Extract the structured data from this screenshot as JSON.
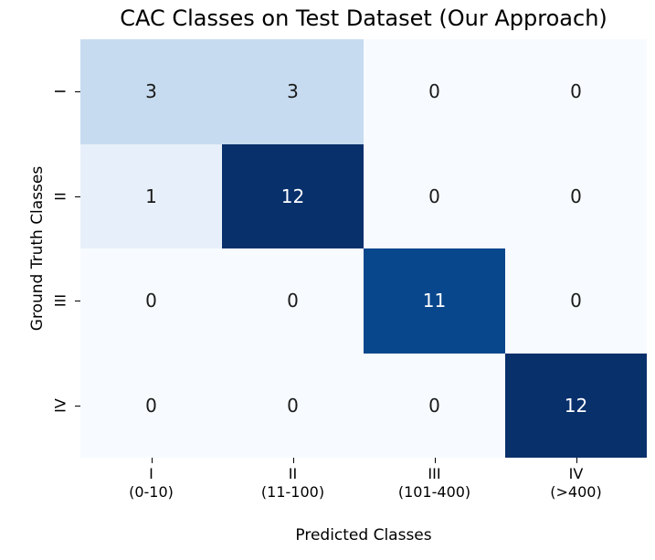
{
  "chart_data": {
    "type": "heatmap",
    "title": "CAC Classes on Test Dataset (Our Approach)",
    "xlabel": "Predicted Classes",
    "ylabel": "Ground Truth Classes",
    "x_ticklabels": [
      {
        "numeral": "I",
        "range": "(0-10)"
      },
      {
        "numeral": "II",
        "range": "(11-100)"
      },
      {
        "numeral": "III",
        "range": "(101-400)"
      },
      {
        "numeral": "IV",
        "range": "(>400)"
      }
    ],
    "y_ticklabels": [
      "I",
      "II",
      "III",
      "IV"
    ],
    "matrix": [
      [
        3,
        3,
        0,
        0
      ],
      [
        1,
        12,
        0,
        0
      ],
      [
        0,
        0,
        11,
        0
      ],
      [
        0,
        0,
        0,
        12
      ]
    ],
    "colormap": "Blues",
    "vmin": 0,
    "vmax": 12,
    "value_colors": {
      "0": "#f7fbff",
      "1": "#e7f0fa",
      "3": "#c6dbef",
      "11": "#09478d",
      "12": "#08306b"
    },
    "annotation_color_dark": "#1a1a1a",
    "annotation_color_light": "#ffffff",
    "legend": "none",
    "grid": false
  }
}
